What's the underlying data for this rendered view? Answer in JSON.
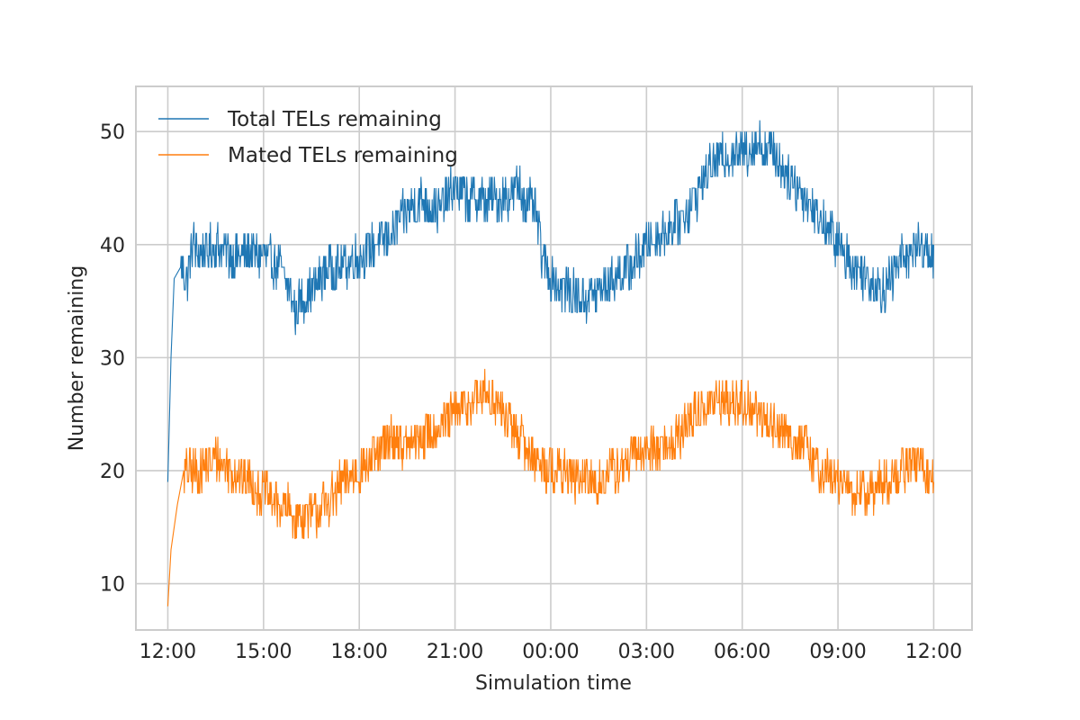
{
  "chart_data": {
    "type": "line",
    "title": "",
    "xlabel": "Simulation time",
    "ylabel": "Number remaining",
    "x_tick_labels": [
      "12:00",
      "15:00",
      "18:00",
      "21:00",
      "00:00",
      "03:00",
      "06:00",
      "09:00",
      "12:00"
    ],
    "x_ticks_hours": [
      0,
      3,
      6,
      9,
      12,
      15,
      18,
      21,
      24
    ],
    "xlim_hours": [
      -1.0,
      25.2
    ],
    "y_ticks": [
      10,
      20,
      30,
      40,
      50
    ],
    "ylim": [
      5.9,
      54.0
    ],
    "grid": true,
    "legend_position": "top-left",
    "series": [
      {
        "name": "Total TELs remaining",
        "color": "#1f77b4",
        "points": [
          [
            0,
            19
          ],
          [
            0.1,
            30
          ],
          [
            0.2,
            37
          ],
          [
            0.4,
            38
          ],
          [
            0.6,
            37
          ],
          [
            0.8,
            40
          ],
          [
            1,
            39
          ],
          [
            1.5,
            40
          ],
          [
            2,
            39
          ],
          [
            2.5,
            39
          ],
          [
            3,
            39
          ],
          [
            3.5,
            38
          ],
          [
            3.8,
            36
          ],
          [
            4,
            34
          ],
          [
            4.2,
            35
          ],
          [
            4.5,
            36
          ],
          [
            4.8,
            37
          ],
          [
            5,
            38
          ],
          [
            5.5,
            38
          ],
          [
            6,
            39
          ],
          [
            6.5,
            40
          ],
          [
            7,
            41
          ],
          [
            7.5,
            43
          ],
          [
            8,
            44
          ],
          [
            8.5,
            43
          ],
          [
            9,
            45
          ],
          [
            9.5,
            44
          ],
          [
            10,
            44
          ],
          [
            10.5,
            44
          ],
          [
            11,
            45
          ],
          [
            11.5,
            43
          ],
          [
            11.8,
            38
          ],
          [
            12,
            37
          ],
          [
            12.5,
            36
          ],
          [
            13,
            35
          ],
          [
            13.5,
            36
          ],
          [
            14,
            37
          ],
          [
            14.5,
            38
          ],
          [
            15,
            40
          ],
          [
            15.5,
            41
          ],
          [
            16,
            42
          ],
          [
            16.5,
            44
          ],
          [
            17,
            47
          ],
          [
            17.5,
            48
          ],
          [
            18,
            48
          ],
          [
            18.5,
            49
          ],
          [
            19,
            48
          ],
          [
            19.5,
            46
          ],
          [
            20,
            44
          ],
          [
            20.5,
            42
          ],
          [
            21,
            40
          ],
          [
            21.5,
            38
          ],
          [
            22,
            37
          ],
          [
            22.5,
            36
          ],
          [
            23,
            39
          ],
          [
            23.5,
            40
          ],
          [
            24,
            39
          ]
        ]
      },
      {
        "name": "Mated TELs remaining",
        "color": "#ff7f0e",
        "points": [
          [
            0,
            8
          ],
          [
            0.1,
            13
          ],
          [
            0.3,
            17
          ],
          [
            0.5,
            20
          ],
          [
            1,
            20
          ],
          [
            1.5,
            21
          ],
          [
            2,
            20
          ],
          [
            2.5,
            19
          ],
          [
            3,
            18
          ],
          [
            3.5,
            17
          ],
          [
            4,
            16
          ],
          [
            4.5,
            16
          ],
          [
            5,
            17
          ],
          [
            5.5,
            19
          ],
          [
            6,
            20
          ],
          [
            6.5,
            21
          ],
          [
            7,
            23
          ],
          [
            7.5,
            22
          ],
          [
            8,
            23
          ],
          [
            8.5,
            24
          ],
          [
            9,
            25
          ],
          [
            9.5,
            26
          ],
          [
            10,
            27
          ],
          [
            10.5,
            25
          ],
          [
            11,
            23
          ],
          [
            11.5,
            21
          ],
          [
            12,
            20
          ],
          [
            12.5,
            20
          ],
          [
            13,
            19
          ],
          [
            13.5,
            19
          ],
          [
            14,
            20
          ],
          [
            14.5,
            21
          ],
          [
            15,
            22
          ],
          [
            15.5,
            22
          ],
          [
            16,
            23
          ],
          [
            16.5,
            25
          ],
          [
            17,
            26
          ],
          [
            17.5,
            26
          ],
          [
            18,
            26
          ],
          [
            18.5,
            25
          ],
          [
            19,
            24
          ],
          [
            19.5,
            23
          ],
          [
            20,
            22
          ],
          [
            20.5,
            20
          ],
          [
            21,
            19
          ],
          [
            21.5,
            18
          ],
          [
            22,
            18
          ],
          [
            22.5,
            19
          ],
          [
            23,
            20
          ],
          [
            23.5,
            21
          ],
          [
            24,
            19
          ]
        ]
      }
    ]
  }
}
